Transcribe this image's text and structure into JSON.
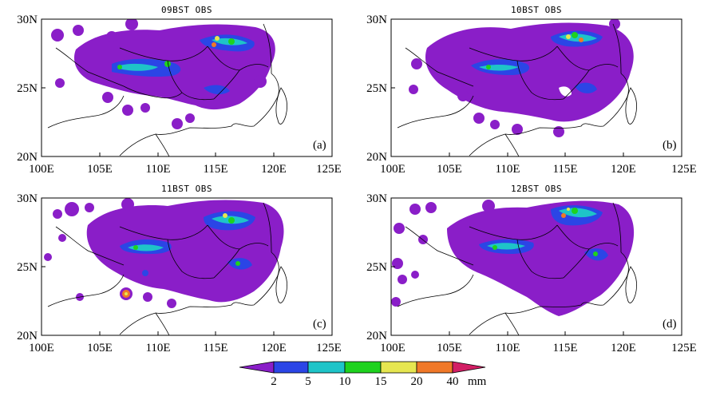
{
  "panels": [
    {
      "title": "09BST OBS",
      "label": "(a)"
    },
    {
      "title": "10BST OBS",
      "label": "(b)"
    },
    {
      "title": "11BST OBS",
      "label": "(c)"
    },
    {
      "title": "12BST OBS",
      "label": "(d)"
    }
  ],
  "axes": {
    "lon_ticks": [
      "100E",
      "105E",
      "110E",
      "115E",
      "120E",
      "125E"
    ],
    "lat_ticks": [
      "30N",
      "25N",
      "20N"
    ],
    "lon_range": [
      100,
      125
    ],
    "lat_range": [
      20,
      30
    ]
  },
  "colorbar": {
    "levels": [
      "2",
      "5",
      "10",
      "15",
      "20",
      "40"
    ],
    "unit": "mm",
    "colors": [
      "#8a1ec8",
      "#2b45e6",
      "#1ec4c8",
      "#1ed21e",
      "#e6e650",
      "#f07828",
      "#d21e64"
    ]
  }
}
